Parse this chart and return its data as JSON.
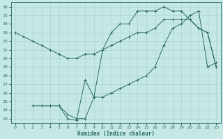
{
  "xlabel": "Humidex (Indice chaleur)",
  "bg_color": "#c5e8e5",
  "grid_color": "#aad4d0",
  "line_color": "#2a6b62",
  "xlim": [
    -0.5,
    23.5
  ],
  "ylim": [
    22.5,
    36.5
  ],
  "xticks": [
    0,
    1,
    2,
    3,
    4,
    5,
    6,
    7,
    8,
    9,
    10,
    11,
    12,
    13,
    14,
    15,
    16,
    17,
    18,
    19,
    20,
    21,
    22,
    23
  ],
  "yticks": [
    23,
    24,
    25,
    26,
    27,
    28,
    29,
    30,
    31,
    32,
    33,
    34,
    35,
    36
  ],
  "line1_x": [
    0,
    1,
    2,
    3,
    4,
    5,
    6,
    7,
    8,
    9,
    10,
    11,
    12,
    13,
    14,
    15,
    16,
    17,
    18,
    19,
    20,
    21,
    22,
    23
  ],
  "line1_y": [
    33.0,
    32.5,
    32.0,
    31.5,
    31.0,
    30.5,
    30.0,
    30.0,
    30.5,
    30.5,
    31.0,
    31.5,
    32.0,
    32.5,
    33.0,
    33.0,
    33.5,
    34.5,
    34.5,
    34.5,
    34.5,
    33.5,
    33.0,
    29.0
  ],
  "line2_x": [
    2,
    3,
    4,
    5,
    6,
    7,
    8,
    9,
    10,
    11,
    12,
    13,
    14,
    15,
    16,
    17,
    18,
    19,
    20,
    21,
    22,
    23
  ],
  "line2_y": [
    24.5,
    24.5,
    24.5,
    24.5,
    23.0,
    22.8,
    27.5,
    25.5,
    31.0,
    33.0,
    34.0,
    34.0,
    35.5,
    35.5,
    35.5,
    36.0,
    35.5,
    35.5,
    34.5,
    33.5,
    33.0,
    29.0
  ],
  "line3_x": [
    2,
    3,
    4,
    5,
    6,
    7,
    8,
    9,
    10,
    11,
    12,
    13,
    14,
    15,
    16,
    17,
    18,
    19,
    20,
    21,
    22,
    23
  ],
  "line3_y": [
    24.5,
    24.5,
    24.5,
    24.5,
    23.5,
    23.0,
    23.0,
    25.5,
    25.5,
    26.0,
    26.5,
    27.0,
    27.5,
    28.0,
    29.0,
    31.5,
    33.5,
    34.0,
    35.0,
    35.5,
    29.0,
    29.5
  ]
}
